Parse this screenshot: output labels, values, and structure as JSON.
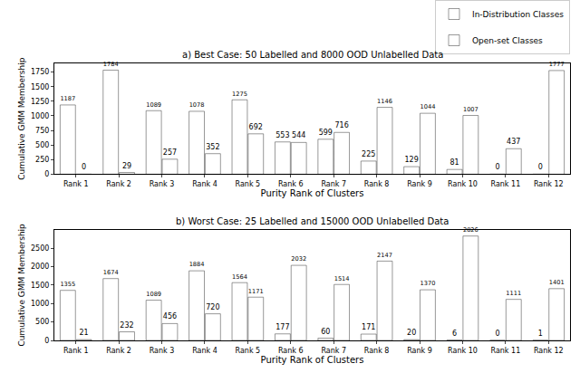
{
  "chart_data": [
    {
      "type": "bar",
      "title": "a) Best Case: 50 Labelled and 8000 OOD Unlabelled Data",
      "xlabel": "Purity Rank of Clusters",
      "ylabel": "Cumulative GMM Membership",
      "categories": [
        "Rank 1",
        "Rank 2",
        "Rank 3",
        "Rank 4",
        "Rank 5",
        "Rank 6",
        "Rank 7",
        "Rank 8",
        "Rank 9",
        "Rank 10",
        "Rank 11",
        "Rank 12"
      ],
      "series": [
        {
          "name": "In-Distribution Classes",
          "color": "#2f8f2f",
          "values": [
            1187,
            1784,
            1089,
            1078,
            1275,
            553,
            599,
            225,
            129,
            81,
            0,
            0
          ]
        },
        {
          "name": "Open-set Classes",
          "color": "#8e2c8e",
          "values": [
            0,
            29,
            257,
            352,
            692,
            544,
            716,
            1146,
            1044,
            1007,
            437,
            1777
          ]
        }
      ],
      "ylim": [
        0,
        1900
      ],
      "yticks": [
        0,
        250,
        500,
        750,
        1000,
        1250,
        1500,
        1750
      ],
      "data_labels": true,
      "legend": "upper right",
      "grid": false
    },
    {
      "type": "bar",
      "title": "b) Worst Case: 25 Labelled and 15000 OOD Unlabelled Data",
      "xlabel": "Purity Rank of Clusters",
      "ylabel": "Cumulative GMM Membership",
      "categories": [
        "Rank 1",
        "Rank 2",
        "Rank 3",
        "Rank 4",
        "Rank 5",
        "Rank 6",
        "Rank 7",
        "Rank 8",
        "Rank 9",
        "Rank 10",
        "Rank 11",
        "Rank 12"
      ],
      "series": [
        {
          "name": "In-Distribution Classes",
          "color": "#2f8f2f",
          "values": [
            1355,
            1674,
            1089,
            1884,
            1564,
            177,
            60,
            171,
            20,
            6,
            0,
            1
          ]
        },
        {
          "name": "Open-set Classes",
          "color": "#8e2c8e",
          "values": [
            21,
            232,
            456,
            720,
            1171,
            2032,
            1514,
            2147,
            1370,
            2826,
            1111,
            1401
          ]
        }
      ],
      "ylim": [
        0,
        3000
      ],
      "yticks": [
        0,
        500,
        1000,
        1500,
        2000,
        2500
      ],
      "data_labels": true,
      "grid": false
    }
  ]
}
